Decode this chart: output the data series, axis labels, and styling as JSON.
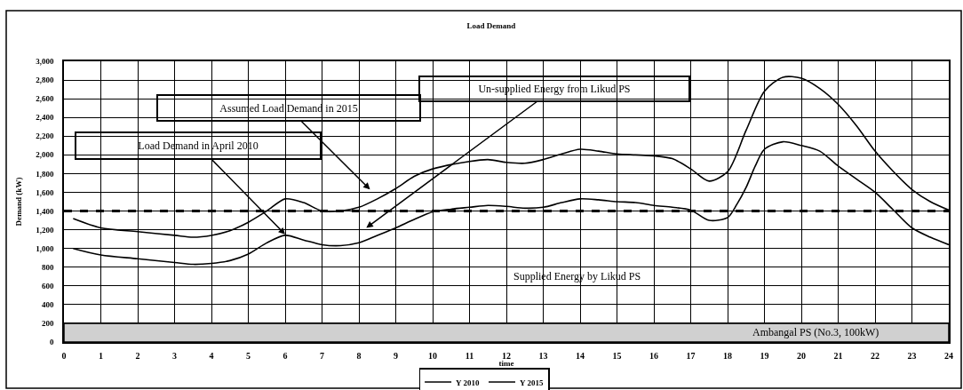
{
  "chart_data": {
    "type": "line",
    "title": "Load Demand",
    "xlabel": "time",
    "ylabel": "Demand (kW)",
    "series": [
      {
        "name": "Y 2010",
        "color": "#000000",
        "x": [
          0.25,
          1,
          2,
          3,
          3.5,
          4,
          4.5,
          5,
          5.5,
          6,
          6.5,
          7,
          7.5,
          8,
          8.5,
          9,
          9.5,
          10,
          10.5,
          11,
          11.5,
          12,
          12.5,
          13,
          13.5,
          14,
          14.5,
          15,
          15.5,
          16,
          16.5,
          17,
          17.5,
          18,
          18.25,
          18.5,
          18.75,
          19,
          19.5,
          20,
          20.5,
          21,
          21.5,
          22,
          22.5,
          23,
          23.5,
          24
        ],
        "values": [
          1000,
          930,
          890,
          850,
          830,
          840,
          870,
          940,
          1060,
          1140,
          1090,
          1040,
          1030,
          1060,
          1140,
          1220,
          1310,
          1390,
          1420,
          1440,
          1460,
          1450,
          1430,
          1440,
          1490,
          1530,
          1520,
          1500,
          1490,
          1460,
          1440,
          1410,
          1300,
          1330,
          1470,
          1650,
          1880,
          2060,
          2140,
          2100,
          2040,
          1880,
          1740,
          1600,
          1410,
          1220,
          1120,
          1040
        ]
      },
      {
        "name": "Y 2015",
        "color": "#000000",
        "x": [
          0.25,
          1,
          2,
          3,
          3.5,
          4,
          4.5,
          5,
          5.5,
          6,
          6.5,
          7,
          7.5,
          8,
          8.5,
          9,
          9.5,
          10,
          11,
          11.5,
          12,
          12.5,
          13,
          13.5,
          14,
          14.5,
          15,
          15.5,
          16,
          16.5,
          17,
          17.5,
          18,
          18.5,
          19,
          19.5,
          20,
          20.5,
          21,
          21.5,
          22,
          22.5,
          23,
          23.5,
          24
        ],
        "values": [
          1320,
          1220,
          1180,
          1140,
          1120,
          1140,
          1190,
          1280,
          1400,
          1530,
          1490,
          1400,
          1400,
          1440,
          1530,
          1640,
          1770,
          1850,
          1930,
          1950,
          1920,
          1910,
          1950,
          2010,
          2060,
          2040,
          2010,
          2000,
          1990,
          1960,
          1850,
          1720,
          1820,
          2260,
          2680,
          2830,
          2820,
          2710,
          2540,
          2310,
          2040,
          1820,
          1630,
          1500,
          1410
        ]
      }
    ],
    "xlim": [
      0,
      24
    ],
    "xticks": [
      0,
      1,
      2,
      3,
      4,
      5,
      6,
      7,
      8,
      9,
      10,
      11,
      12,
      13,
      14,
      15,
      16,
      17,
      18,
      19,
      20,
      21,
      22,
      23,
      24
    ],
    "ylim": [
      0,
      3000
    ],
    "yticks": [
      0,
      200,
      400,
      600,
      800,
      {
        "value": 1000,
        "label": "1,000"
      },
      {
        "value": 1200,
        "label": "1,200"
      },
      {
        "value": 1400,
        "label": "1,400"
      },
      {
        "value": 1600,
        "label": "1,600"
      },
      {
        "value": 1800,
        "label": "1,800"
      },
      {
        "value": 2000,
        "label": "2,000"
      },
      {
        "value": 2200,
        "label": "2,200"
      },
      {
        "value": 2400,
        "label": "2,400"
      },
      {
        "value": 2600,
        "label": "2,600"
      },
      {
        "value": 2800,
        "label": "2,800"
      },
      {
        "value": 3000,
        "label": "3,000"
      }
    ],
    "grid": true,
    "legend": "bottom",
    "line_style": "solid",
    "ref_lines": [
      {
        "axis": "y",
        "value": 1400,
        "line_style": "dashed",
        "color": "#000000"
      }
    ],
    "bands": [
      {
        "axis": "y",
        "from": 0,
        "to": 200,
        "label": "Ambangal PS (No.3, 100kW)",
        "color": "#d0d0d0"
      }
    ],
    "annotations": [
      {
        "text": "Load Demand in April 2010",
        "x": 6,
        "y": 1150
      },
      "Assumed Load Demand in 2015",
      "Un-supplied Energy from Likud PS",
      "Supplied Energy by Likud PS"
    ]
  }
}
